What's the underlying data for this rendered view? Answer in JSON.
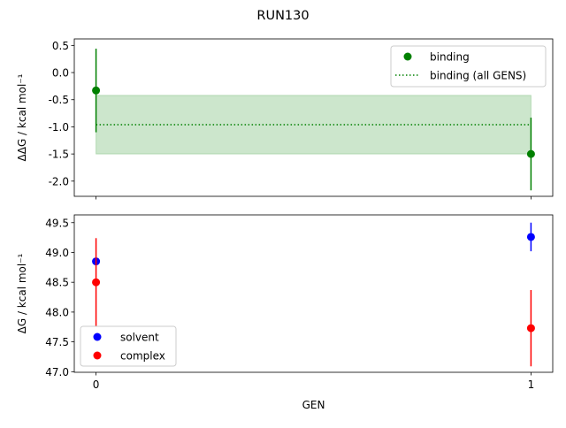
{
  "chart_data": [
    {
      "type": "scatter",
      "suptitle": "RUN130",
      "ylabel": "ΔΔG / kcal mol⁻¹",
      "xlabel": "",
      "x": [
        0,
        1
      ],
      "xlim": [
        -0.05,
        1.05
      ],
      "ylim": [
        -2.28,
        0.62
      ],
      "yticks": [
        "0.5",
        "0.0",
        "-0.5",
        "-1.0",
        "-1.5",
        "-2.0"
      ],
      "ytick_values": [
        0.5,
        0.0,
        -0.5,
        -1.0,
        -1.5,
        -2.0
      ],
      "grid": false,
      "legend_position": "top-right",
      "series": [
        {
          "name": "binding",
          "color": "#008000",
          "y": [
            -0.33,
            -1.5
          ],
          "yerr": [
            0.77,
            0.67
          ]
        }
      ],
      "band": {
        "name": "binding (all GENS)",
        "color": "#008000",
        "mean": -0.96,
        "err": 0.54,
        "style": "dotted"
      }
    },
    {
      "type": "scatter",
      "ylabel": "ΔG / kcal mol⁻¹",
      "xlabel": "GEN",
      "x": [
        0,
        1
      ],
      "xticks": [
        "0",
        "1"
      ],
      "xlim": [
        -0.05,
        1.05
      ],
      "ylim": [
        46.99,
        49.63
      ],
      "yticks": [
        "49.5",
        "49.0",
        "48.5",
        "48.0",
        "47.5",
        "47.0"
      ],
      "ytick_values": [
        49.5,
        49.0,
        48.5,
        48.0,
        47.5,
        47.0
      ],
      "grid": false,
      "legend_position": "bottom-left",
      "series": [
        {
          "name": "solvent",
          "color": "#0000ff",
          "y": [
            48.85,
            49.26
          ],
          "yerr": [
            0.0,
            0.24
          ]
        },
        {
          "name": "complex",
          "color": "#ff0000",
          "y": [
            48.5,
            47.73
          ],
          "yerr": [
            0.74,
            0.64
          ]
        }
      ]
    }
  ]
}
